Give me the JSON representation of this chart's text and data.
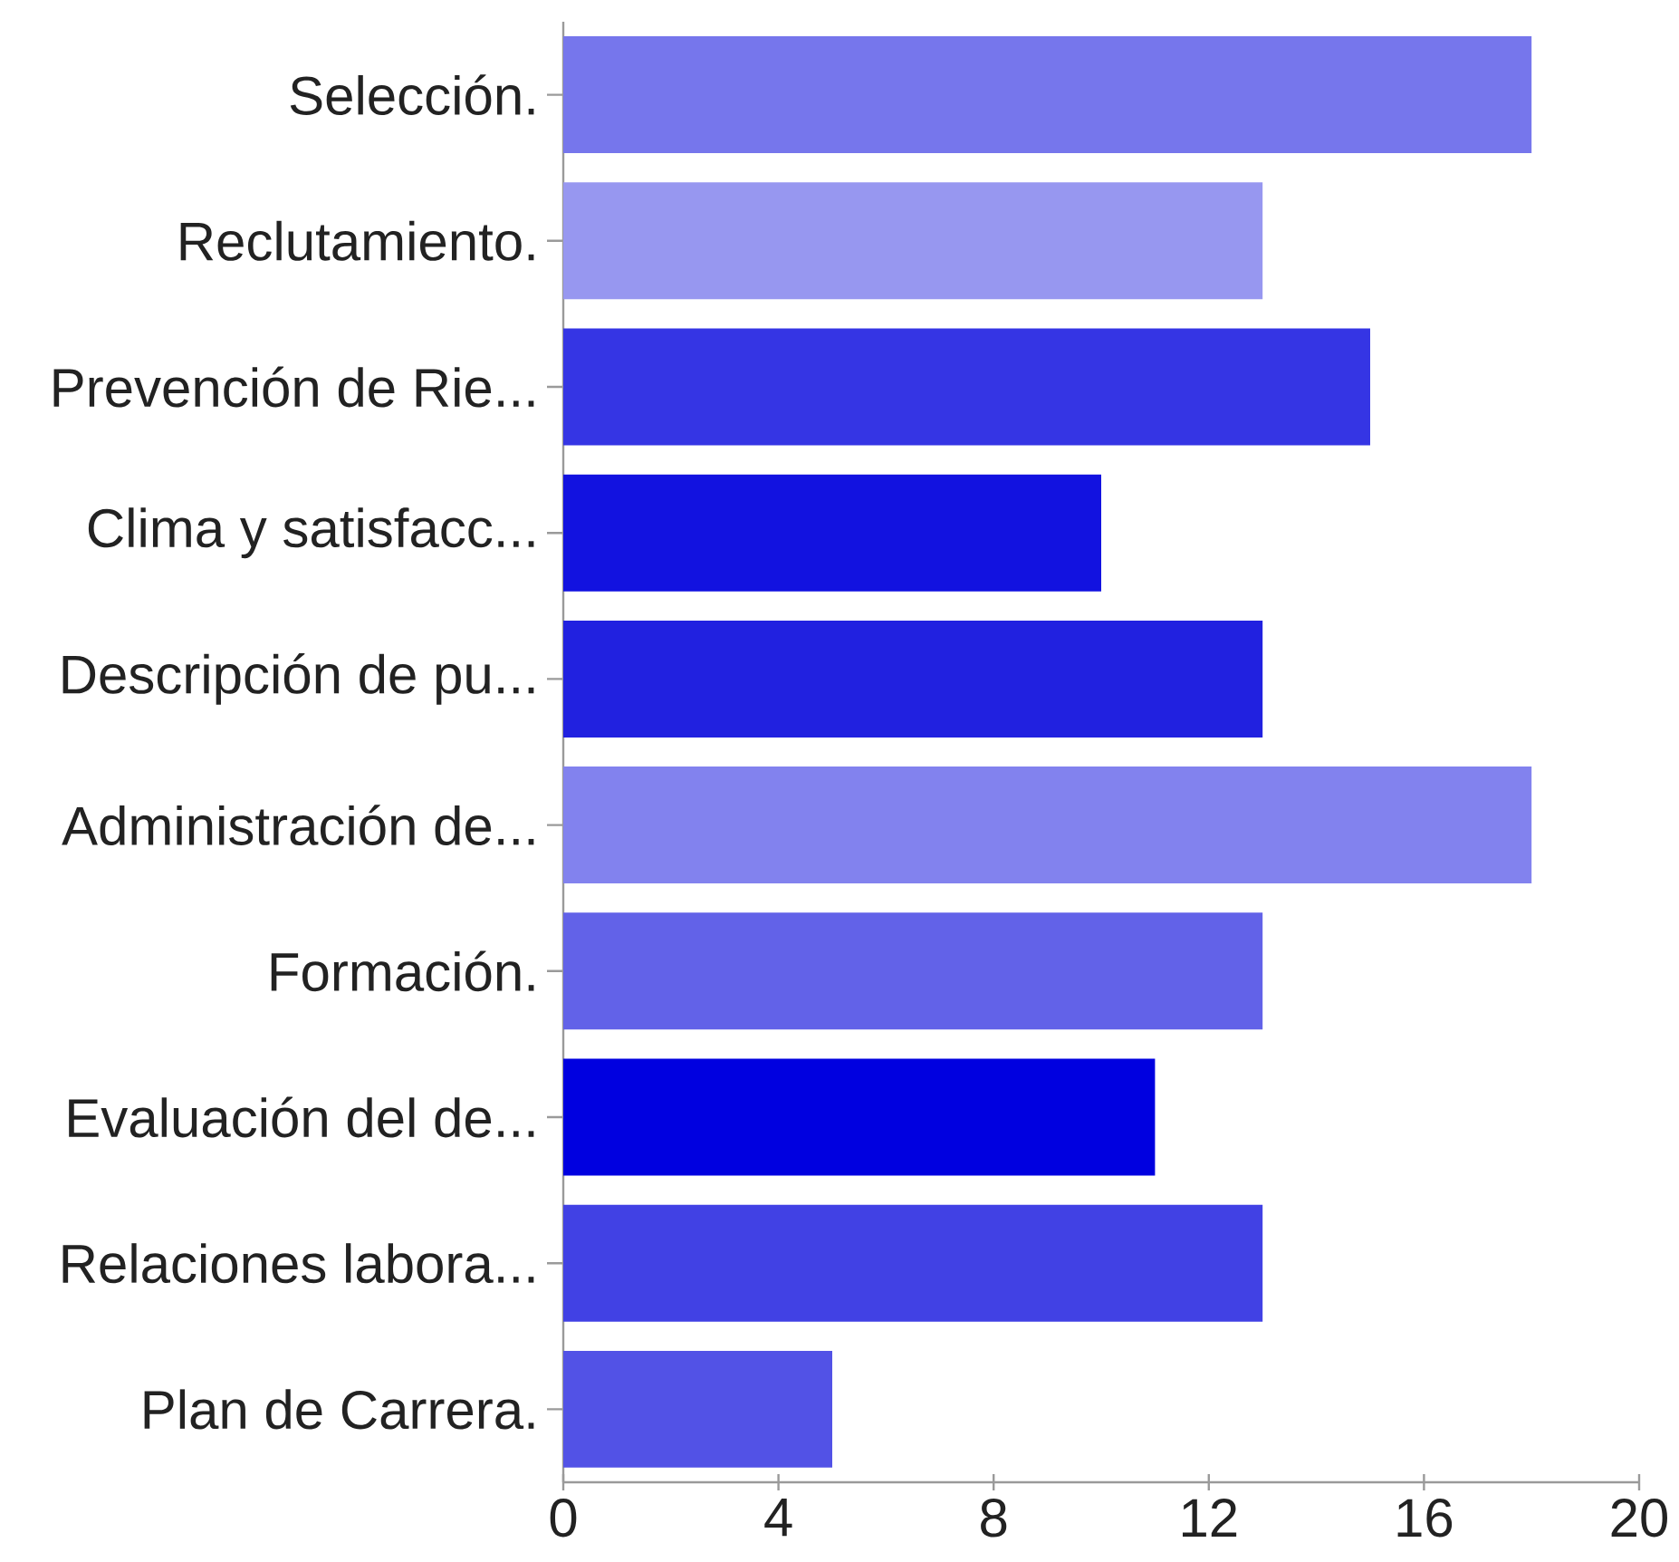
{
  "chart_data": {
    "type": "bar",
    "orientation": "horizontal",
    "categories": [
      "Selección.",
      "Reclutamiento.",
      "Prevención de Rie...",
      "Clima y satisfacc...",
      "Descripción de pu...",
      "Administración de...",
      "Formación.",
      "Evaluación del de...",
      "Relaciones labora...",
      "Plan de Carrera."
    ],
    "values": [
      18,
      13,
      15,
      10,
      13,
      18,
      13,
      11,
      13,
      5
    ],
    "colors": [
      "#7676ec",
      "#9797f0",
      "#3535e4",
      "#1212e0",
      "#2121e0",
      "#8282ee",
      "#6262e8",
      "#0000e0",
      "#4141e4",
      "#5252e6"
    ],
    "xlim": [
      0,
      20
    ],
    "xticks": [
      0,
      4,
      8,
      12,
      16,
      20
    ]
  }
}
